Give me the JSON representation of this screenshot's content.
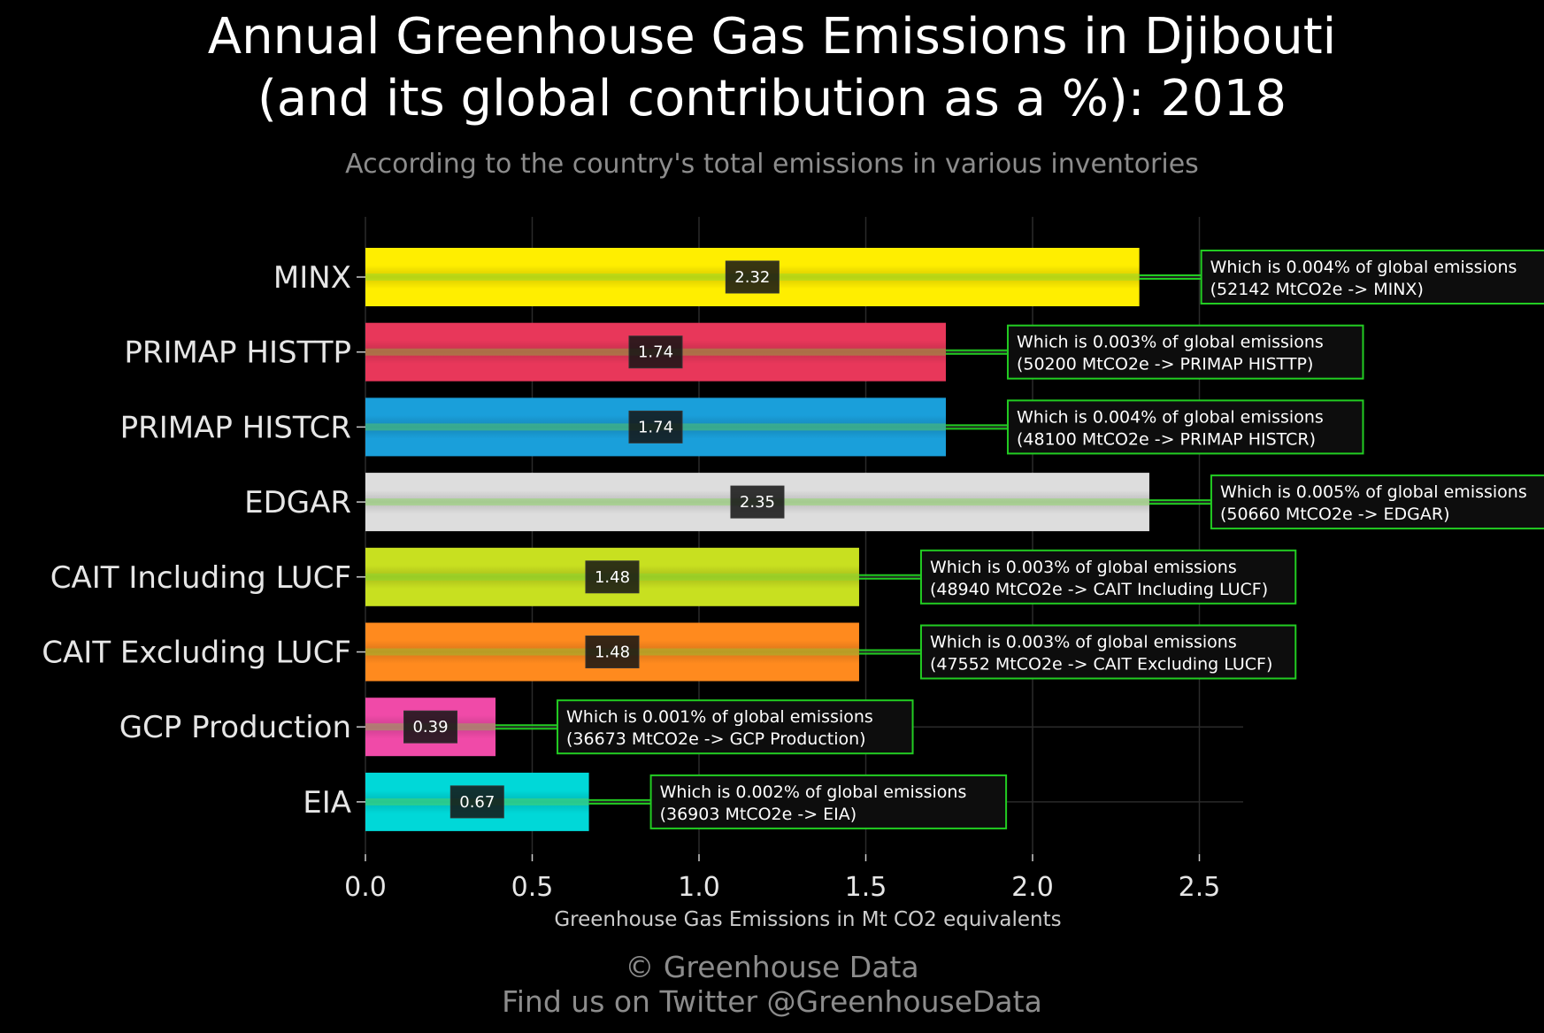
{
  "chart_data": {
    "type": "bar",
    "orientation": "horizontal",
    "title": {
      "line1": "Annual Greenhouse Gas Emissions in Djibouti",
      "line2": "(and its global contribution as a %): 2018"
    },
    "subtitle": "According to the country's total emissions in various inventories",
    "xlabel": "Greenhouse Gas Emissions in Mt CO2 equivalents",
    "ylabel": "",
    "xlim": [
      0,
      2.62
    ],
    "xticks": [
      0.0,
      0.5,
      1.0,
      1.5,
      2.0,
      2.5
    ],
    "xtick_labels": [
      "0.0",
      "0.5",
      "1.0",
      "1.5",
      "2.0",
      "2.5"
    ],
    "grid": true,
    "categories": [
      "MINX",
      "PRIMAP HISTTP",
      "PRIMAP HISTCR",
      "EDGAR",
      "CAIT Including LUCF",
      "CAIT Excluding LUCF",
      "GCP Production",
      "EIA"
    ],
    "values": [
      2.32,
      1.74,
      1.74,
      2.35,
      1.48,
      1.48,
      0.39,
      0.67
    ],
    "value_labels": [
      "2.32",
      "1.74",
      "1.74",
      "2.35",
      "1.48",
      "1.48",
      "0.39",
      "0.67"
    ],
    "colors": [
      "#ffee00",
      "#e8375a",
      "#1a9fda",
      "#dddddd",
      "#c8e020",
      "#ff8a1e",
      "#f04aa8",
      "#00d8d8"
    ],
    "annotations": [
      {
        "line1": "Which is 0.004% of global emissions",
        "line2": "(52142 MtCO2e -> MINX)"
      },
      {
        "line1": "Which is 0.003% of global emissions",
        "line2": "(50200 MtCO2e -> PRIMAP HISTTP)"
      },
      {
        "line1": "Which is 0.004% of global emissions",
        "line2": "(48100 MtCO2e -> PRIMAP HISTCR)"
      },
      {
        "line1": "Which is 0.005% of global emissions",
        "line2": "(50660 MtCO2e -> EDGAR)"
      },
      {
        "line1": "Which is 0.003% of global emissions",
        "line2": "(48940 MtCO2e -> CAIT Including LUCF)"
      },
      {
        "line1": "Which is 0.003% of global emissions",
        "line2": "(47552 MtCO2e -> CAIT Excluding LUCF)"
      },
      {
        "line1": "Which is 0.001% of global emissions",
        "line2": "(36673 MtCO2e -> GCP Production)"
      },
      {
        "line1": "Which is 0.002% of global emissions",
        "line2": "(36903 MtCO2e -> EIA)"
      }
    ],
    "accent_color": "#22cc22"
  },
  "footer": {
    "copyright": "© Greenhouse Data",
    "twitter": "Find us on Twitter @GreenhouseData"
  }
}
